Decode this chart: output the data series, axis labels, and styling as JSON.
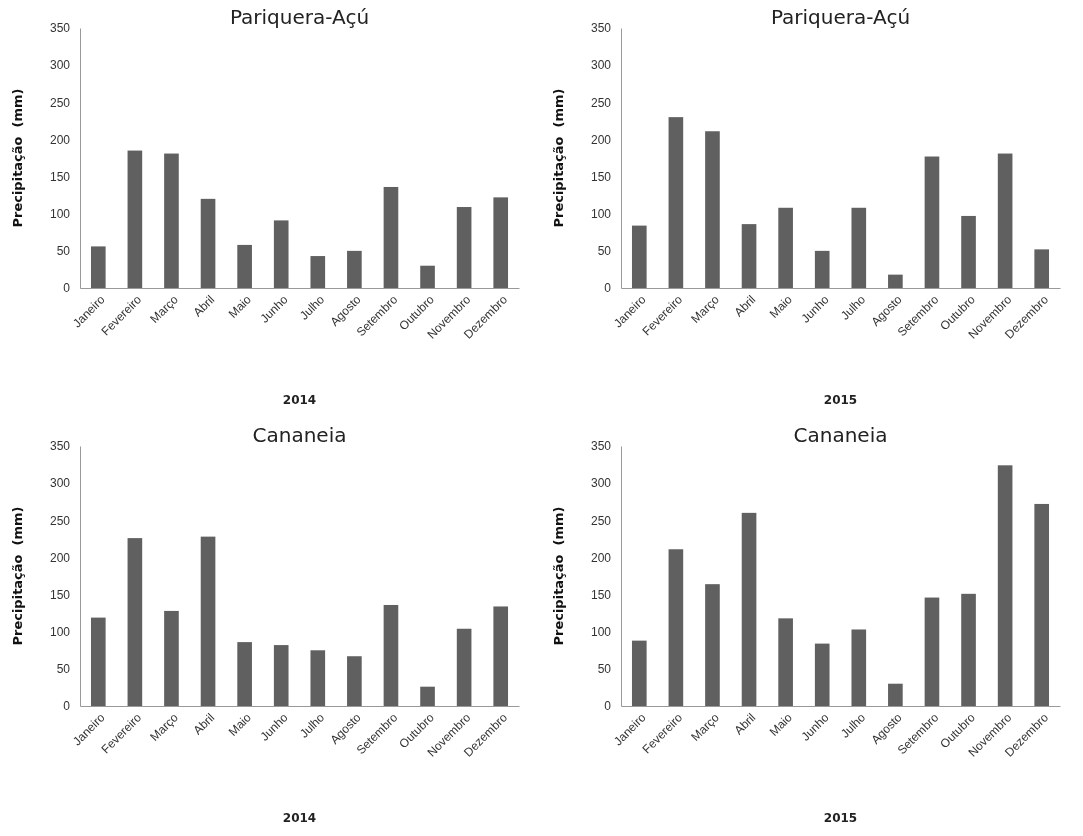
{
  "chart_data": [
    {
      "type": "bar",
      "title": "Pariquera-Açú",
      "xlabel": "2014",
      "ylabel": "Precipitação  (mm)",
      "categories": [
        "Janeiro",
        "Fevereiro",
        "Março",
        "Abril",
        "Maio",
        "Junho",
        "Julho",
        "Agosto",
        "Setembro",
        "Outubro",
        "Novembro",
        "Dezembro"
      ],
      "values": [
        56,
        185,
        181,
        120,
        58,
        91,
        43,
        50,
        136,
        30,
        109,
        122
      ],
      "color": "#606060",
      "ylim": [
        0,
        350
      ],
      "yticks": [
        0,
        50,
        100,
        150,
        200,
        250,
        300,
        350
      ]
    },
    {
      "type": "bar",
      "title": "Pariquera-Açú",
      "xlabel": "2015",
      "ylabel": "Precipitação  (mm)",
      "categories": [
        "Janeiro",
        "Fevereiro",
        "Março",
        "Abril",
        "Maio",
        "Junho",
        "Julho",
        "Agosto",
        "Setembro",
        "Outubro",
        "Novembro",
        "Dezembro"
      ],
      "values": [
        84,
        230,
        211,
        86,
        108,
        50,
        108,
        18,
        177,
        97,
        181,
        52
      ],
      "color": "#606060",
      "ylim": [
        0,
        350
      ],
      "yticks": [
        0,
        50,
        100,
        150,
        200,
        250,
        300,
        350
      ]
    },
    {
      "type": "bar",
      "title": "Cananeia",
      "xlabel": "2014",
      "ylabel": "Precipitação  (mm)",
      "categories": [
        "Janeiro",
        "Fevereiro",
        "Março",
        "Abril",
        "Maio",
        "Junho",
        "Julho",
        "Agosto",
        "Setembro",
        "Outubro",
        "Novembro",
        "Dezembro"
      ],
      "values": [
        119,
        226,
        128,
        228,
        86,
        82,
        75,
        67,
        136,
        26,
        104,
        134
      ],
      "color": "#606060",
      "ylim": [
        0,
        350
      ],
      "yticks": [
        0,
        50,
        100,
        150,
        200,
        250,
        300,
        350
      ]
    },
    {
      "type": "bar",
      "title": "Cananeia",
      "xlabel": "2015",
      "ylabel": "Precipitação  (mm)",
      "categories": [
        "Janeiro",
        "Fevereiro",
        "Março",
        "Abril",
        "Maio",
        "Junho",
        "Julho",
        "Agosto",
        "Setembro",
        "Outubro",
        "Novembro",
        "Dezembro"
      ],
      "values": [
        88,
        211,
        164,
        260,
        118,
        84,
        103,
        30,
        146,
        151,
        324,
        272
      ],
      "color": "#606060",
      "ylim": [
        0,
        350
      ],
      "yticks": [
        0,
        50,
        100,
        150,
        200,
        250,
        300,
        350
      ]
    }
  ]
}
